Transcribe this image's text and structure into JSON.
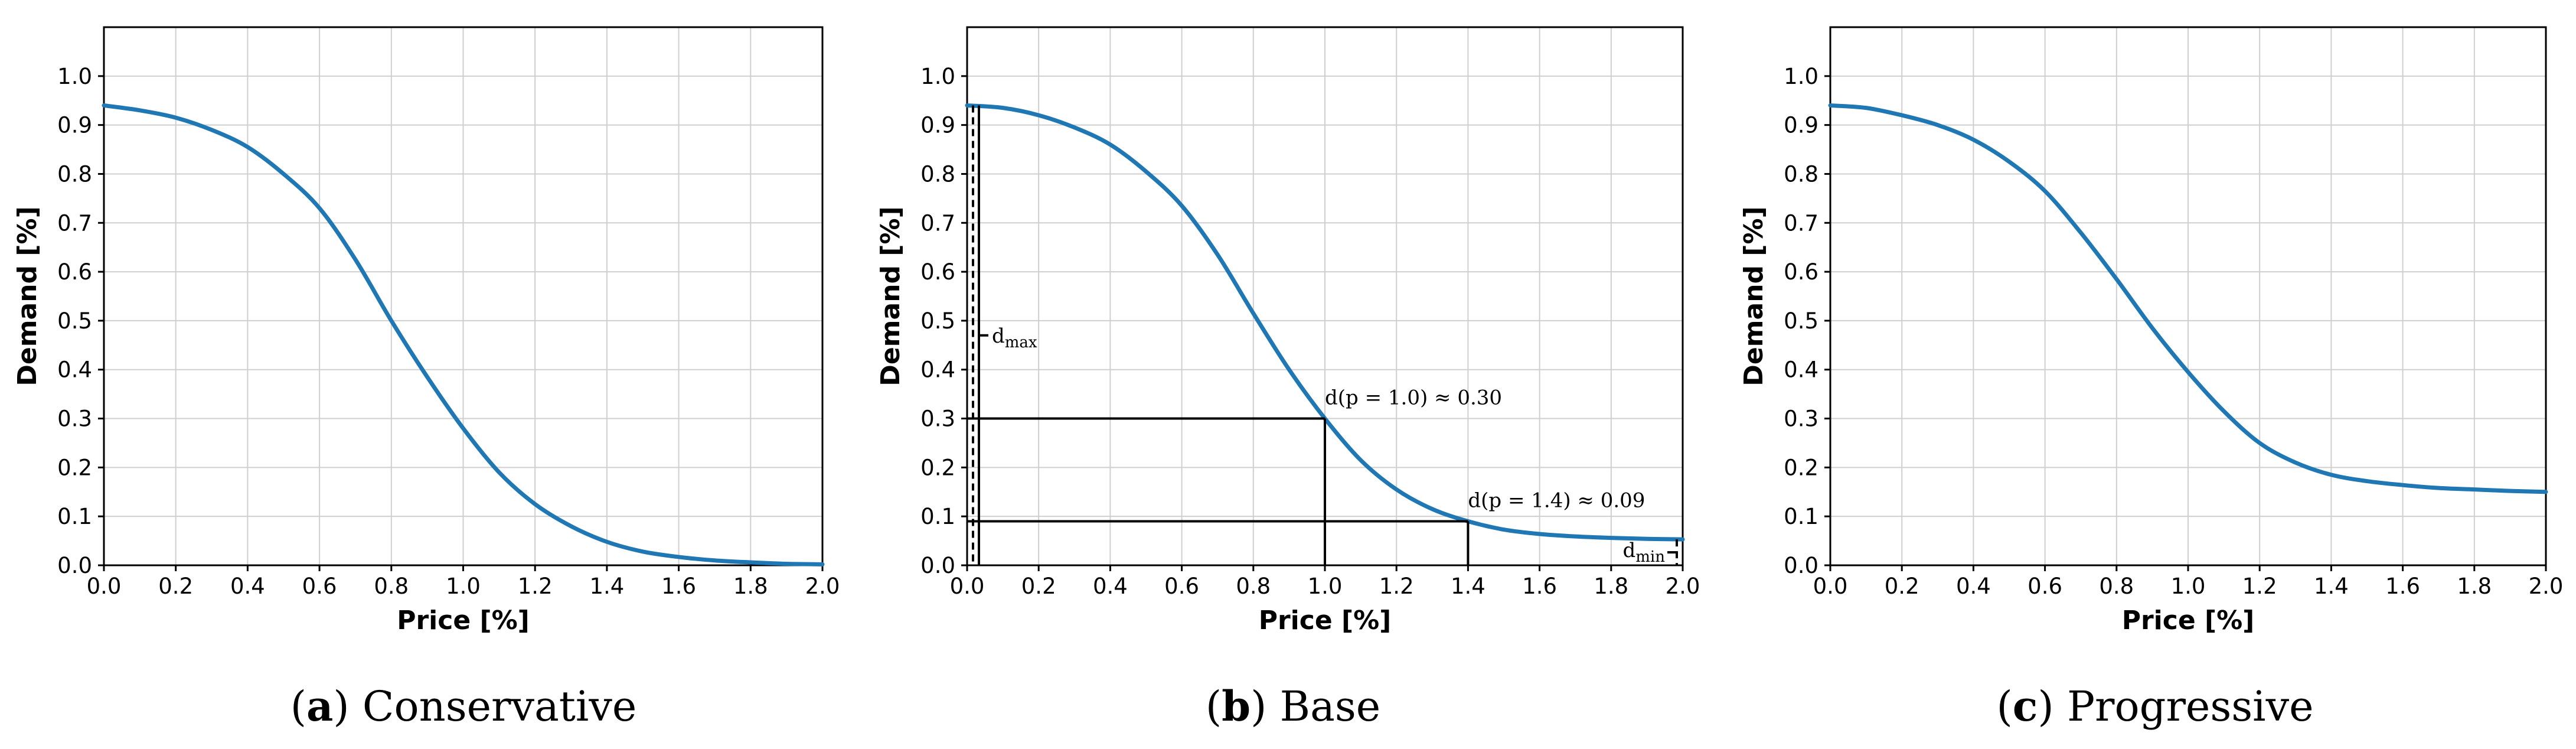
{
  "chart_data": [
    {
      "type": "line",
      "caption_letter": "a",
      "caption_text": "Conservative",
      "xlabel": "Price [%]",
      "ylabel": "Demand [%]",
      "xlim": [
        0,
        2.0
      ],
      "ylim": [
        0,
        1.1
      ],
      "grid": true,
      "xticks": [
        "0.0",
        "0.2",
        "0.4",
        "0.6",
        "0.8",
        "1.0",
        "1.2",
        "1.4",
        "1.6",
        "1.8",
        "2.0"
      ],
      "yticks": [
        "0.0",
        "0.1",
        "0.2",
        "0.3",
        "0.4",
        "0.5",
        "0.6",
        "0.7",
        "0.8",
        "0.9",
        "1.0"
      ],
      "series": [
        {
          "x": [
            0.0,
            0.1,
            0.2,
            0.3,
            0.4,
            0.5,
            0.6,
            0.7,
            0.8,
            0.9,
            1.0,
            1.1,
            1.2,
            1.3,
            1.4,
            1.5,
            1.6,
            1.7,
            1.8,
            1.9,
            2.0
          ],
          "y": [
            0.94,
            0.93,
            0.915,
            0.89,
            0.855,
            0.8,
            0.73,
            0.625,
            0.5,
            0.385,
            0.28,
            0.19,
            0.125,
            0.08,
            0.048,
            0.028,
            0.017,
            0.01,
            0.006,
            0.003,
            0.002
          ]
        }
      ]
    },
    {
      "type": "line",
      "caption_letter": "b",
      "caption_text": "Base",
      "xlabel": "Price [%]",
      "ylabel": "Demand [%]",
      "xlim": [
        0,
        2.0
      ],
      "ylim": [
        0,
        1.1
      ],
      "grid": true,
      "xticks": [
        "0.0",
        "0.2",
        "0.4",
        "0.6",
        "0.8",
        "1.0",
        "1.2",
        "1.4",
        "1.6",
        "1.8",
        "2.0"
      ],
      "yticks": [
        "0.0",
        "0.1",
        "0.2",
        "0.3",
        "0.4",
        "0.5",
        "0.6",
        "0.7",
        "0.8",
        "0.9",
        "1.0"
      ],
      "series": [
        {
          "x": [
            0.0,
            0.1,
            0.2,
            0.3,
            0.4,
            0.5,
            0.6,
            0.7,
            0.8,
            0.9,
            1.0,
            1.1,
            1.2,
            1.3,
            1.4,
            1.5,
            1.6,
            1.7,
            1.8,
            1.9,
            2.0
          ],
          "y": [
            0.94,
            0.935,
            0.92,
            0.895,
            0.86,
            0.805,
            0.735,
            0.635,
            0.515,
            0.4,
            0.3,
            0.215,
            0.155,
            0.115,
            0.09,
            0.073,
            0.064,
            0.059,
            0.056,
            0.054,
            0.053
          ]
        }
      ],
      "annotations": [
        {
          "text": "d(p = 1.0)  ≈  0.30",
          "x": 1.0,
          "y": 0.3
        },
        {
          "text": "d(p = 1.4)  ≈  0.09",
          "x": 1.4,
          "y": 0.09
        },
        {
          "label": "d",
          "sub": "max"
        },
        {
          "label": "d",
          "sub": "min"
        }
      ]
    },
    {
      "type": "line",
      "caption_letter": "c",
      "caption_text": "Progressive",
      "xlabel": "Price [%]",
      "ylabel": "Demand [%]",
      "xlim": [
        0,
        2.0
      ],
      "ylim": [
        0,
        1.1
      ],
      "grid": true,
      "xticks": [
        "0.0",
        "0.2",
        "0.4",
        "0.6",
        "0.8",
        "1.0",
        "1.2",
        "1.4",
        "1.6",
        "1.8",
        "2.0"
      ],
      "yticks": [
        "0.0",
        "0.1",
        "0.2",
        "0.3",
        "0.4",
        "0.5",
        "0.6",
        "0.7",
        "0.8",
        "0.9",
        "1.0"
      ],
      "series": [
        {
          "x": [
            0.0,
            0.1,
            0.2,
            0.3,
            0.4,
            0.5,
            0.6,
            0.7,
            0.8,
            0.9,
            1.0,
            1.1,
            1.2,
            1.3,
            1.4,
            1.5,
            1.6,
            1.7,
            1.8,
            1.9,
            2.0
          ],
          "y": [
            0.94,
            0.935,
            0.92,
            0.9,
            0.87,
            0.825,
            0.765,
            0.68,
            0.585,
            0.485,
            0.395,
            0.315,
            0.25,
            0.21,
            0.185,
            0.172,
            0.164,
            0.158,
            0.155,
            0.152,
            0.15
          ]
        }
      ]
    }
  ]
}
